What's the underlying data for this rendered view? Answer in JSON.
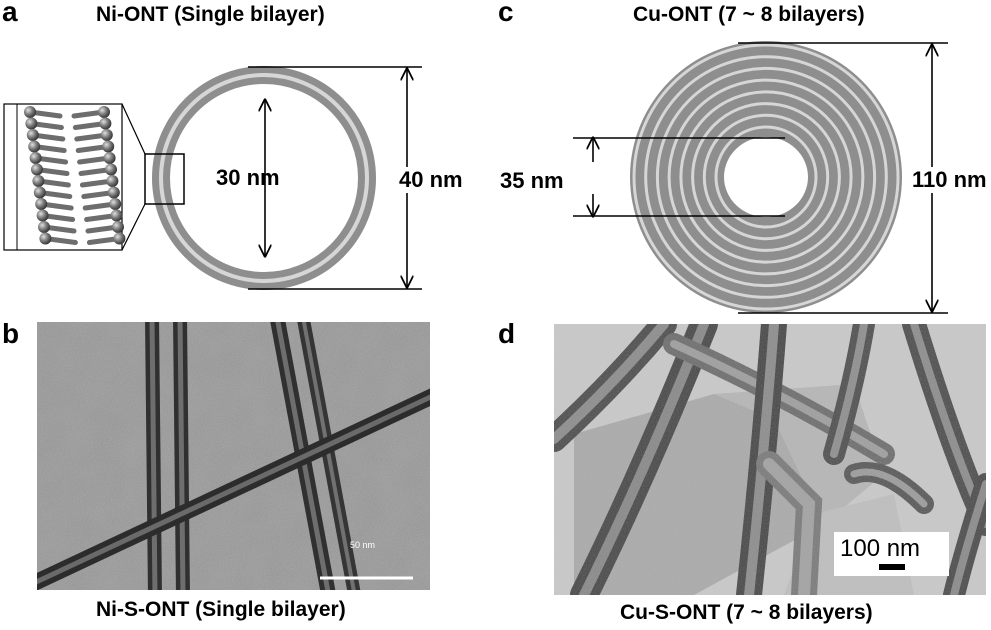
{
  "panels": {
    "a": {
      "label": "a",
      "title": "Ni-ONT (Single bilayer)",
      "inner_diameter": "30 nm",
      "outer_diameter": "40 nm"
    },
    "b": {
      "label": "b",
      "caption": "Ni-S-ONT (Single bilayer)",
      "scale_bar_label": "50 nm"
    },
    "c": {
      "label": "c",
      "title": "Cu-ONT (7 ~ 8 bilayers)",
      "inner_diameter": "35 nm",
      "outer_diameter": "110 nm"
    },
    "d": {
      "label": "d",
      "caption": "Cu-S-ONT (7 ~ 8 bilayers)",
      "scale_bar_label": "100 nm"
    }
  },
  "colors": {
    "ring_gray": "#8e8e8e",
    "ring_light": "#d6d6d6",
    "line": "#000000",
    "tem_b_background": "#8d8d8d",
    "tem_d_background": "#c9c9c9"
  }
}
